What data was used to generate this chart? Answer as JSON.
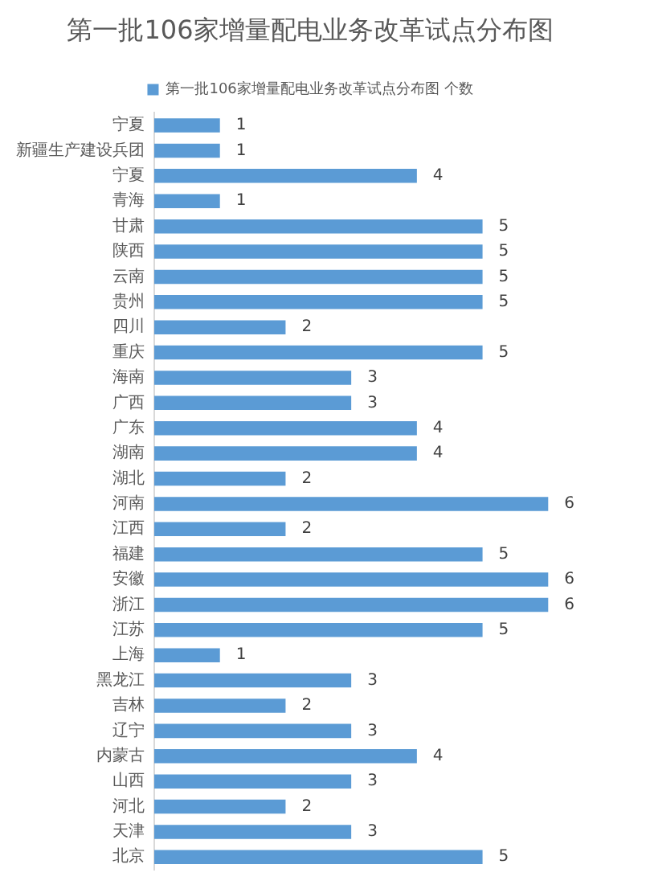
{
  "chart_data": {
    "type": "bar",
    "orientation": "horizontal",
    "title": "第一批106家增量配电业务改革试点分布图",
    "categories": [
      "宁夏",
      "新疆生产建设兵团",
      "宁夏",
      "青海",
      "甘肃",
      "陕西",
      "云南",
      "贵州",
      "四川",
      "重庆",
      "海南",
      "广西",
      "广东",
      "湖南",
      "湖北",
      "河南",
      "江西",
      "福建",
      "安徽",
      "浙江",
      "江苏",
      "上海",
      "黑龙江",
      "吉林",
      "辽宁",
      "内蒙古",
      "山西",
      "河北",
      "天津",
      "北京"
    ],
    "series": [
      {
        "name": "第一批106家增量配电业务改革试点分布图 个数",
        "color": "#5b9bd5",
        "values": [
          1,
          1,
          4,
          1,
          5,
          5,
          5,
          5,
          2,
          5,
          3,
          3,
          4,
          4,
          2,
          6,
          2,
          5,
          6,
          6,
          5,
          1,
          3,
          2,
          3,
          4,
          3,
          2,
          3,
          5
        ]
      }
    ],
    "tick_labels": "y",
    "data_labels": true,
    "legend": "top",
    "grid": false
  }
}
